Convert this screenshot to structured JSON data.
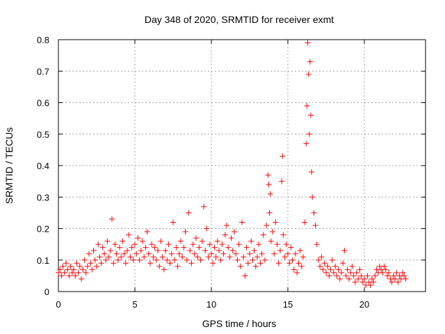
{
  "chart_data": {
    "type": "scatter",
    "title": "Day 348 of 2020, SRMTID for receiver exmt",
    "xlabel": "GPS time / hours",
    "ylabel": "SRMTID / TECUs",
    "xlim": [
      0,
      24
    ],
    "ylim": [
      0,
      0.8
    ],
    "x_ticks": [
      0,
      5,
      10,
      15,
      20
    ],
    "x_tick_labels": [
      "0",
      "5",
      "10",
      "15",
      "20"
    ],
    "y_ticks": [
      0,
      0.1,
      0.2,
      0.3,
      0.4,
      0.5,
      0.6,
      0.7,
      0.8
    ],
    "y_tick_labels": [
      "0",
      "0.1",
      "0.2",
      "0.3",
      "0.4",
      "0.5",
      "0.6",
      "0.7",
      "0.8"
    ],
    "grid": true,
    "marker": "+",
    "marker_color": "#ff0000",
    "series": [
      {
        "name": "SRMTID",
        "points": [
          [
            0.0,
            0.06
          ],
          [
            0.1,
            0.07
          ],
          [
            0.2,
            0.05
          ],
          [
            0.3,
            0.08
          ],
          [
            0.4,
            0.06
          ],
          [
            0.5,
            0.09
          ],
          [
            0.6,
            0.07
          ],
          [
            0.7,
            0.05
          ],
          [
            0.8,
            0.08
          ],
          [
            0.9,
            0.06
          ],
          [
            1.0,
            0.07
          ],
          [
            1.1,
            0.05
          ],
          [
            1.2,
            0.09
          ],
          [
            1.3,
            0.06
          ],
          [
            1.4,
            0.08
          ],
          [
            1.5,
            0.04
          ],
          [
            1.6,
            0.07
          ],
          [
            1.7,
            0.1
          ],
          [
            1.8,
            0.06
          ],
          [
            1.9,
            0.08
          ],
          [
            2.0,
            0.12
          ],
          [
            2.1,
            0.09
          ],
          [
            2.2,
            0.07
          ],
          [
            2.3,
            0.13
          ],
          [
            2.4,
            0.1
          ],
          [
            2.5,
            0.08
          ],
          [
            2.6,
            0.15
          ],
          [
            2.7,
            0.11
          ],
          [
            2.8,
            0.09
          ],
          [
            2.9,
            0.14
          ],
          [
            3.0,
            0.12
          ],
          [
            3.1,
            0.1
          ],
          [
            3.2,
            0.16
          ],
          [
            3.3,
            0.11
          ],
          [
            3.4,
            0.13
          ],
          [
            3.5,
            0.23
          ],
          [
            3.6,
            0.09
          ],
          [
            3.7,
            0.15
          ],
          [
            3.8,
            0.12
          ],
          [
            3.9,
            0.1
          ],
          [
            4.0,
            0.14
          ],
          [
            4.1,
            0.11
          ],
          [
            4.2,
            0.16
          ],
          [
            4.3,
            0.12
          ],
          [
            4.4,
            0.09
          ],
          [
            4.5,
            0.13
          ],
          [
            4.6,
            0.18
          ],
          [
            4.7,
            0.11
          ],
          [
            4.8,
            0.14
          ],
          [
            4.9,
            0.1
          ],
          [
            5.0,
            0.15
          ],
          [
            5.1,
            0.12
          ],
          [
            5.2,
            0.17
          ],
          [
            5.3,
            0.1
          ],
          [
            5.4,
            0.13
          ],
          [
            5.5,
            0.16
          ],
          [
            5.6,
            0.11
          ],
          [
            5.7,
            0.14
          ],
          [
            5.8,
            0.19
          ],
          [
            5.9,
            0.12
          ],
          [
            6.0,
            0.09
          ],
          [
            6.1,
            0.15
          ],
          [
            6.2,
            0.11
          ],
          [
            6.3,
            0.14
          ],
          [
            6.4,
            0.1
          ],
          [
            6.5,
            0.13
          ],
          [
            6.6,
            0.08
          ],
          [
            6.7,
            0.16
          ],
          [
            6.8,
            0.11
          ],
          [
            6.9,
            0.07
          ],
          [
            7.0,
            0.13
          ],
          [
            7.1,
            0.1
          ],
          [
            7.2,
            0.15
          ],
          [
            7.3,
            0.09
          ],
          [
            7.4,
            0.12
          ],
          [
            7.5,
            0.22
          ],
          [
            7.6,
            0.1
          ],
          [
            7.7,
            0.14
          ],
          [
            7.8,
            0.08
          ],
          [
            7.9,
            0.12
          ],
          [
            8.0,
            0.16
          ],
          [
            8.1,
            0.11
          ],
          [
            8.2,
            0.14
          ],
          [
            8.3,
            0.19
          ],
          [
            8.4,
            0.1
          ],
          [
            8.5,
            0.25
          ],
          [
            8.6,
            0.13
          ],
          [
            8.7,
            0.09
          ],
          [
            8.8,
            0.15
          ],
          [
            8.9,
            0.12
          ],
          [
            9.0,
            0.17
          ],
          [
            9.1,
            0.11
          ],
          [
            9.2,
            0.14
          ],
          [
            9.3,
            0.1
          ],
          [
            9.4,
            0.16
          ],
          [
            9.5,
            0.27
          ],
          [
            9.6,
            0.13
          ],
          [
            9.7,
            0.2
          ],
          [
            9.8,
            0.11
          ],
          [
            9.9,
            0.15
          ],
          [
            10.0,
            0.12
          ],
          [
            10.1,
            0.09
          ],
          [
            10.2,
            0.14
          ],
          [
            10.3,
            0.11
          ],
          [
            10.4,
            0.16
          ],
          [
            10.5,
            0.13
          ],
          [
            10.6,
            0.1
          ],
          [
            10.7,
            0.15
          ],
          [
            10.8,
            0.12
          ],
          [
            10.9,
            0.18
          ],
          [
            11.0,
            0.21
          ],
          [
            11.1,
            0.14
          ],
          [
            11.2,
            0.11
          ],
          [
            11.3,
            0.17
          ],
          [
            11.4,
            0.13
          ],
          [
            11.5,
            0.19
          ],
          [
            11.6,
            0.12
          ],
          [
            11.7,
            0.1
          ],
          [
            11.8,
            0.15
          ],
          [
            11.9,
            0.08
          ],
          [
            12.0,
            0.22
          ],
          [
            12.1,
            0.11
          ],
          [
            12.2,
            0.05
          ],
          [
            12.3,
            0.14
          ],
          [
            12.4,
            0.09
          ],
          [
            12.5,
            0.12
          ],
          [
            12.6,
            0.16
          ],
          [
            12.7,
            0.1
          ],
          [
            12.8,
            0.13
          ],
          [
            12.9,
            0.08
          ],
          [
            13.0,
            0.11
          ],
          [
            13.1,
            0.15
          ],
          [
            13.2,
            0.09
          ],
          [
            13.3,
            0.12
          ],
          [
            13.4,
            0.18
          ],
          [
            13.5,
            0.1
          ],
          [
            13.6,
            0.21
          ],
          [
            13.7,
            0.37
          ],
          [
            13.75,
            0.34
          ],
          [
            13.8,
            0.25
          ],
          [
            13.85,
            0.31
          ],
          [
            13.9,
            0.16
          ],
          [
            14.0,
            0.19
          ],
          [
            14.1,
            0.12
          ],
          [
            14.2,
            0.22
          ],
          [
            14.3,
            0.15
          ],
          [
            14.4,
            0.09
          ],
          [
            14.5,
            0.13
          ],
          [
            14.6,
            0.35
          ],
          [
            14.65,
            0.43
          ],
          [
            14.7,
            0.18
          ],
          [
            14.8,
            0.11
          ],
          [
            14.9,
            0.15
          ],
          [
            15.0,
            0.12
          ],
          [
            15.1,
            0.09
          ],
          [
            15.2,
            0.14
          ],
          [
            15.3,
            0.1
          ],
          [
            15.4,
            0.07
          ],
          [
            15.5,
            0.12
          ],
          [
            15.6,
            0.06
          ],
          [
            15.7,
            0.09
          ],
          [
            15.8,
            0.13
          ],
          [
            15.9,
            0.08
          ],
          [
            16.0,
            0.11
          ],
          [
            16.1,
            0.22
          ],
          [
            16.2,
            0.47
          ],
          [
            16.25,
            0.59
          ],
          [
            16.3,
            0.79
          ],
          [
            16.35,
            0.69
          ],
          [
            16.4,
            0.5
          ],
          [
            16.45,
            0.73
          ],
          [
            16.5,
            0.56
          ],
          [
            16.55,
            0.38
          ],
          [
            16.6,
            0.3
          ],
          [
            16.7,
            0.25
          ],
          [
            16.8,
            0.21
          ],
          [
            16.9,
            0.15
          ],
          [
            17.0,
            0.1
          ],
          [
            17.1,
            0.08
          ],
          [
            17.2,
            0.11
          ],
          [
            17.3,
            0.07
          ],
          [
            17.4,
            0.09
          ],
          [
            17.5,
            0.06
          ],
          [
            17.6,
            0.08
          ],
          [
            17.7,
            0.05
          ],
          [
            17.8,
            0.07
          ],
          [
            17.9,
            0.1
          ],
          [
            18.0,
            0.06
          ],
          [
            18.1,
            0.08
          ],
          [
            18.2,
            0.05
          ],
          [
            18.3,
            0.07
          ],
          [
            18.4,
            0.04
          ],
          [
            18.5,
            0.06
          ],
          [
            18.6,
            0.09
          ],
          [
            18.7,
            0.13
          ],
          [
            18.8,
            0.05
          ],
          [
            18.9,
            0.07
          ],
          [
            19.0,
            0.04
          ],
          [
            19.1,
            0.06
          ],
          [
            19.2,
            0.08
          ],
          [
            19.3,
            0.05
          ],
          [
            19.4,
            0.03
          ],
          [
            19.5,
            0.06
          ],
          [
            19.6,
            0.04
          ],
          [
            19.7,
            0.07
          ],
          [
            19.8,
            0.05
          ],
          [
            19.9,
            0.03
          ],
          [
            20.0,
            0.04
          ],
          [
            20.1,
            0.02
          ],
          [
            20.2,
            0.05
          ],
          [
            20.3,
            0.03
          ],
          [
            20.4,
            0.02
          ],
          [
            20.5,
            0.04
          ],
          [
            20.6,
            0.03
          ],
          [
            20.7,
            0.05
          ],
          [
            20.8,
            0.07
          ],
          [
            20.9,
            0.06
          ],
          [
            21.0,
            0.08
          ],
          [
            21.1,
            0.07
          ],
          [
            21.2,
            0.06
          ],
          [
            21.3,
            0.08
          ],
          [
            21.4,
            0.07
          ],
          [
            21.5,
            0.05
          ],
          [
            21.6,
            0.06
          ],
          [
            21.7,
            0.04
          ],
          [
            21.8,
            0.03
          ],
          [
            21.9,
            0.05
          ],
          [
            22.0,
            0.04
          ],
          [
            22.1,
            0.06
          ],
          [
            22.2,
            0.03
          ],
          [
            22.3,
            0.05
          ],
          [
            22.4,
            0.04
          ],
          [
            22.5,
            0.06
          ],
          [
            22.6,
            0.05
          ],
          [
            22.7,
            0.04
          ]
        ]
      }
    ]
  }
}
